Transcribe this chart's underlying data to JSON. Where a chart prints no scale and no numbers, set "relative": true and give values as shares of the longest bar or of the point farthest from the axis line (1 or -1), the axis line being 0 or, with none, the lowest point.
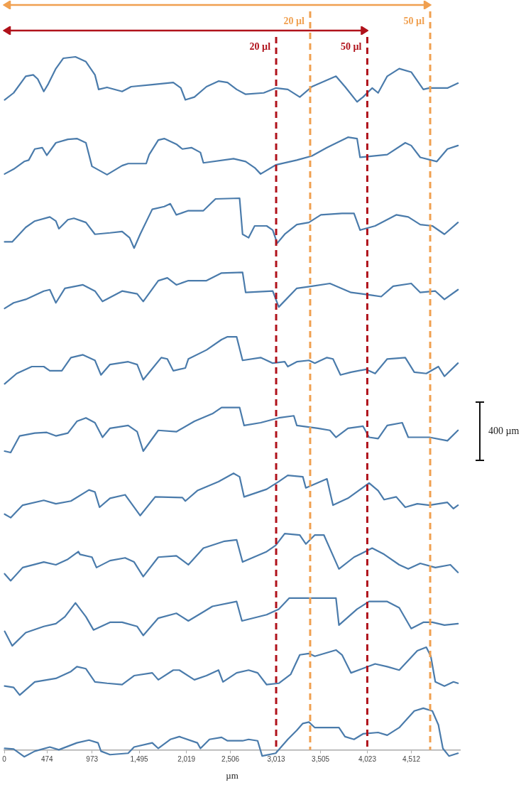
{
  "chart_data": {
    "type": "line",
    "relative": true,
    "marker": "none",
    "line_style": "solid",
    "xlabel": "µm",
    "xlim": [
      0,
      5050
    ],
    "xticks": [
      0,
      474,
      973,
      {
        "value": 1495,
        "label": "1,495"
      },
      {
        "value": 2019,
        "label": "2,019"
      },
      {
        "value": 2506,
        "label": "2,506"
      },
      {
        "value": 3013,
        "label": "3,013"
      },
      {
        "value": 3505,
        "label": "3,505"
      },
      {
        "value": 4023,
        "label": "4,023"
      },
      {
        "value": 4512,
        "label": "4,512"
      }
    ],
    "ref_lines": [
      {
        "axis": "x",
        "value": 3390,
        "label": "20 µl",
        "color": "#f0a050",
        "line_style": "dashed"
      },
      {
        "axis": "x",
        "value": 4720,
        "label": "50 µl",
        "color": "#f0a050",
        "line_style": "dashed"
      },
      {
        "axis": "x",
        "value": 3013,
        "label": "20 µl",
        "color": "#b0121b",
        "line_style": "dashed"
      },
      {
        "axis": "x",
        "value": 4023,
        "label": "50 µl",
        "color": "#b0121b",
        "line_style": "dashed"
      }
    ],
    "annotations": [
      "400 µm"
    ],
    "series": [
      {
        "color": "#4a7bab",
        "x": [
          4,
          104,
          238,
          321,
          371,
          438,
          488,
          572,
          655,
          789,
          905,
          1005,
          1046,
          1139,
          1306,
          1406,
          1640,
          1873,
          1957,
          2007,
          2107,
          2241,
          2374,
          2474,
          2575,
          2675,
          2875,
          3008,
          3142,
          3275,
          3409,
          3676,
          3776,
          3910,
          3976,
          4077,
          4143,
          4244,
          4377,
          4510,
          4644,
          4711,
          4911,
          5028
        ],
        "values": [
          0.938,
          0.948,
          0.972,
          0.974,
          0.968,
          0.95,
          0.961,
          0.983,
          0.998,
          1,
          0.993,
          0.974,
          0.953,
          0.956,
          0.95,
          0.957,
          0.96,
          0.963,
          0.955,
          0.938,
          0.942,
          0.957,
          0.965,
          0.963,
          0.953,
          0.946,
          0.948,
          0.955,
          0.953,
          0.942,
          0.957,
          0.972,
          0.957,
          0.935,
          0.942,
          0.955,
          0.948,
          0.972,
          0.983,
          0.978,
          0.953,
          0.955,
          0.955,
          0.962
        ]
      },
      {
        "color": "#4a7bab",
        "x": [
          4,
          104,
          221,
          271,
          338,
          421,
          471,
          572,
          705,
          805,
          905,
          972,
          1139,
          1306,
          1373,
          1573,
          1606,
          1707,
          1773,
          1907,
          1974,
          2074,
          2174,
          2207,
          2541,
          2675,
          2775,
          2841,
          3008,
          3242,
          3409,
          3576,
          3809,
          3910,
          3943,
          4244,
          4444,
          4510,
          4610,
          4794,
          4911,
          5028
        ],
        "values": [
          0.831,
          0.838,
          0.849,
          0.851,
          0.867,
          0.869,
          0.858,
          0.876,
          0.881,
          0.882,
          0.876,
          0.842,
          0.83,
          0.843,
          0.846,
          0.846,
          0.859,
          0.88,
          0.882,
          0.874,
          0.867,
          0.869,
          0.862,
          0.847,
          0.853,
          0.849,
          0.84,
          0.831,
          0.844,
          0.851,
          0.857,
          0.869,
          0.884,
          0.882,
          0.855,
          0.859,
          0.876,
          0.872,
          0.855,
          0.849,
          0.867,
          0.872
        ]
      },
      {
        "color": "#4a7bab",
        "x": [
          4,
          88,
          238,
          338,
          505,
          572,
          605,
          705,
          772,
          905,
          1005,
          1172,
          1306,
          1389,
          1439,
          1506,
          1640,
          1773,
          1840,
          1907,
          2040,
          2207,
          2341,
          2608,
          2641,
          2708,
          2775,
          2908,
          2975,
          3025,
          3108,
          3242,
          3376,
          3509,
          3743,
          3876,
          3943,
          4110,
          4344,
          4477,
          4610,
          4744,
          4878,
          5028
        ],
        "values": [
          0.733,
          0.733,
          0.754,
          0.763,
          0.769,
          0.763,
          0.752,
          0.765,
          0.767,
          0.761,
          0.744,
          0.746,
          0.748,
          0.739,
          0.724,
          0.744,
          0.78,
          0.784,
          0.788,
          0.772,
          0.778,
          0.778,
          0.795,
          0.796,
          0.744,
          0.739,
          0.756,
          0.756,
          0.75,
          0.731,
          0.744,
          0.758,
          0.761,
          0.772,
          0.774,
          0.774,
          0.75,
          0.756,
          0.772,
          0.769,
          0.758,
          0.756,
          0.744,
          0.761
        ]
      },
      {
        "color": "#4a7bab",
        "x": [
          4,
          104,
          238,
          438,
          505,
          572,
          672,
          872,
          1005,
          1089,
          1306,
          1473,
          1540,
          1707,
          1807,
          1907,
          2040,
          2241,
          2408,
          2641,
          2675,
          2975,
          3042,
          3242,
          3409,
          3609,
          3843,
          4077,
          4177,
          4310,
          4510,
          4610,
          4777,
          4878,
          5028
        ],
        "values": [
          0.637,
          0.645,
          0.65,
          0.662,
          0.664,
          0.645,
          0.666,
          0.671,
          0.662,
          0.647,
          0.662,
          0.658,
          0.647,
          0.677,
          0.681,
          0.671,
          0.677,
          0.677,
          0.688,
          0.689,
          0.66,
          0.662,
          0.639,
          0.666,
          0.669,
          0.673,
          0.66,
          0.656,
          0.654,
          0.669,
          0.673,
          0.66,
          0.662,
          0.65,
          0.664
        ]
      },
      {
        "color": "#4a7bab",
        "x": [
          4,
          138,
          305,
          438,
          505,
          638,
          739,
          872,
          1005,
          1072,
          1172,
          1373,
          1473,
          1540,
          1740,
          1807,
          1873,
          2007,
          2040,
          2241,
          2408,
          2474,
          2575,
          2641,
          2841,
          2975,
          3108,
          3142,
          3242,
          3376,
          3442,
          3576,
          3643,
          3726,
          3843,
          4010,
          4110,
          4244,
          4444,
          4544,
          4677,
          4811,
          4878,
          5028
        ],
        "values": [
          0.528,
          0.543,
          0.553,
          0.553,
          0.547,
          0.547,
          0.566,
          0.57,
          0.562,
          0.541,
          0.556,
          0.56,
          0.556,
          0.534,
          0.566,
          0.564,
          0.547,
          0.551,
          0.564,
          0.577,
          0.592,
          0.596,
          0.596,
          0.562,
          0.566,
          0.558,
          0.56,
          0.553,
          0.56,
          0.562,
          0.558,
          0.566,
          0.564,
          0.541,
          0.545,
          0.549,
          0.543,
          0.564,
          0.566,
          0.545,
          0.543,
          0.553,
          0.539,
          0.558
        ]
      },
      {
        "color": "#4a7bab",
        "x": [
          4,
          71,
          171,
          338,
          471,
          572,
          705,
          805,
          905,
          1005,
          1089,
          1172,
          1373,
          1473,
          1540,
          1707,
          1907,
          2107,
          2307,
          2408,
          2608,
          2658,
          2841,
          3042,
          3209,
          3242,
          3476,
          3609,
          3676,
          3809,
          3976,
          4043,
          4143,
          4244,
          4410,
          4477,
          4711,
          4911,
          5028
        ],
        "values": [
          0.431,
          0.429,
          0.453,
          0.457,
          0.458,
          0.453,
          0.457,
          0.474,
          0.479,
          0.472,
          0.451,
          0.464,
          0.468,
          0.459,
          0.431,
          0.461,
          0.459,
          0.474,
          0.485,
          0.494,
          0.494,
          0.468,
          0.472,
          0.479,
          0.482,
          0.468,
          0.464,
          0.461,
          0.451,
          0.464,
          0.467,
          0.451,
          0.449,
          0.468,
          0.472,
          0.451,
          0.451,
          0.446,
          0.461
        ]
      },
      {
        "color": "#4a7bab",
        "x": [
          4,
          71,
          204,
          438,
          572,
          739,
          939,
          1005,
          1056,
          1172,
          1339,
          1506,
          1673,
          1974,
          2007,
          2140,
          2374,
          2541,
          2608,
          2658,
          2908,
          3042,
          3142,
          3309,
          3342,
          3576,
          3643,
          3809,
          4043,
          4143,
          4210,
          4344,
          4444,
          4577,
          4711,
          4911,
          4978,
          5028
        ],
        "values": [
          0.34,
          0.335,
          0.353,
          0.36,
          0.355,
          0.359,
          0.375,
          0.372,
          0.35,
          0.363,
          0.368,
          0.338,
          0.365,
          0.364,
          0.359,
          0.374,
          0.387,
          0.399,
          0.394,
          0.365,
          0.376,
          0.387,
          0.396,
          0.394,
          0.378,
          0.391,
          0.353,
          0.363,
          0.385,
          0.374,
          0.361,
          0.365,
          0.35,
          0.355,
          0.353,
          0.357,
          0.348,
          0.353
        ]
      },
      {
        "color": "#4a7bab",
        "x": [
          4,
          71,
          204,
          438,
          572,
          705,
          822,
          839,
          972,
          1022,
          1172,
          1339,
          1439,
          1540,
          1707,
          1907,
          2040,
          2207,
          2441,
          2575,
          2641,
          2908,
          3008,
          3108,
          3275,
          3342,
          3442,
          3542,
          3709,
          3876,
          4077,
          4210,
          4377,
          4477,
          4610,
          4777,
          4944,
          5028
        ],
        "values": [
          0.254,
          0.244,
          0.263,
          0.271,
          0.267,
          0.275,
          0.286,
          0.282,
          0.278,
          0.263,
          0.273,
          0.277,
          0.271,
          0.25,
          0.278,
          0.28,
          0.267,
          0.291,
          0.301,
          0.303,
          0.271,
          0.286,
          0.295,
          0.312,
          0.31,
          0.297,
          0.31,
          0.31,
          0.261,
          0.278,
          0.291,
          0.282,
          0.267,
          0.261,
          0.269,
          0.263,
          0.267,
          0.256
        ]
      },
      {
        "color": "#4a7bab",
        "x": [
          4,
          88,
          238,
          438,
          572,
          672,
          789,
          905,
          989,
          1172,
          1306,
          1473,
          1540,
          1707,
          1907,
          2040,
          2207,
          2307,
          2575,
          2634,
          2908,
          3042,
          3159,
          3676,
          3709,
          3910,
          4043,
          4244,
          4377,
          4510,
          4644,
          4744,
          4878,
          5028
        ],
        "values": [
          0.171,
          0.15,
          0.169,
          0.178,
          0.182,
          0.192,
          0.212,
          0.192,
          0.173,
          0.184,
          0.184,
          0.178,
          0.165,
          0.19,
          0.197,
          0.186,
          0.199,
          0.207,
          0.214,
          0.186,
          0.195,
          0.203,
          0.219,
          0.219,
          0.18,
          0.203,
          0.214,
          0.214,
          0.205,
          0.175,
          0.184,
          0.184,
          0.18,
          0.182
        ]
      },
      {
        "color": "#4a7bab",
        "x": [
          4,
          104,
          171,
          338,
          572,
          739,
          805,
          905,
          1005,
          1139,
          1306,
          1439,
          1640,
          1707,
          1873,
          1940,
          2107,
          2241,
          2374,
          2424,
          2575,
          2708,
          2808,
          2908,
          3042,
          3175,
          3275,
          3376,
          3442,
          3676,
          3743,
          3843,
          4110,
          4244,
          4377,
          4577,
          4677,
          4727,
          4777,
          4878,
          4978,
          5028
        ],
        "values": [
          0.092,
          0.09,
          0.079,
          0.098,
          0.103,
          0.113,
          0.12,
          0.117,
          0.098,
          0.096,
          0.094,
          0.107,
          0.111,
          0.101,
          0.115,
          0.115,
          0.101,
          0.107,
          0.115,
          0.098,
          0.111,
          0.115,
          0.111,
          0.094,
          0.096,
          0.109,
          0.137,
          0.139,
          0.135,
          0.144,
          0.137,
          0.111,
          0.124,
          0.12,
          0.115,
          0.143,
          0.148,
          0.135,
          0.098,
          0.092,
          0.098,
          0.096
        ]
      },
      {
        "color": "#4a7bab",
        "x": [
          4,
          104,
          221,
          338,
          505,
          605,
          805,
          939,
          1039,
          1072,
          1172,
          1373,
          1439,
          1640,
          1707,
          1840,
          1940,
          2140,
          2174,
          2274,
          2408,
          2474,
          2641,
          2708,
          2808,
          2858,
          3008,
          3142,
          3242,
          3309,
          3376,
          3442,
          3576,
          3709,
          3776,
          3876,
          3976,
          4143,
          4244,
          4377,
          4544,
          4644,
          4744,
          4811,
          4861,
          4928,
          5028
        ],
        "values": [
          0.002,
          0.001,
          -0.01,
          -0.002,
          0.004,
          0,
          0.01,
          0.014,
          0.01,
          -0.002,
          -0.007,
          -0.005,
          0.004,
          0.01,
          0.002,
          0.015,
          0.019,
          0.01,
          0.002,
          0.015,
          0.018,
          0.013,
          0.013,
          0.015,
          0.013,
          -0.009,
          -0.005,
          0.015,
          0.028,
          0.038,
          0.04,
          0.032,
          0.032,
          0.032,
          0.019,
          0.015,
          0.023,
          0.025,
          0.021,
          0.032,
          0.056,
          0.06,
          0.056,
          0.036,
          0.002,
          -0.009,
          -0.005
        ]
      }
    ]
  }
}
